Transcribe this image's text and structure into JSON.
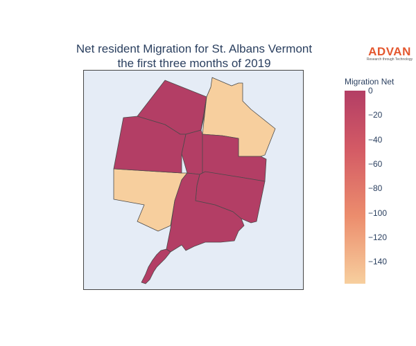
{
  "title": {
    "line1": "Net resident Migration for St. Albans Vermont",
    "line2": "the first three months of 2019"
  },
  "logo": {
    "name": "ADVAN",
    "tagline": "Research through Technology"
  },
  "legend": {
    "title": "Migration Net",
    "ticks": [
      "0",
      "−20",
      "−40",
      "−60",
      "−80",
      "−100",
      "−120",
      "−140"
    ],
    "colorscale": [
      "#b33e65",
      "#d35a65",
      "#ec8d6d",
      "#f7cf9e"
    ],
    "range": [
      -158,
      0
    ]
  },
  "map": {
    "background": "#e5ecf6",
    "border_color": "#444444",
    "regions": [
      {
        "id": "northwest",
        "migration_net": 0
      },
      {
        "id": "north-center",
        "migration_net": 0
      },
      {
        "id": "northeast",
        "migration_net": -158
      },
      {
        "id": "east-upper",
        "migration_net": 0
      },
      {
        "id": "west",
        "migration_net": -158
      },
      {
        "id": "east-lower",
        "migration_net": 0
      },
      {
        "id": "south-center",
        "migration_net": 0
      },
      {
        "id": "south-corridor",
        "migration_net": 0
      }
    ]
  }
}
